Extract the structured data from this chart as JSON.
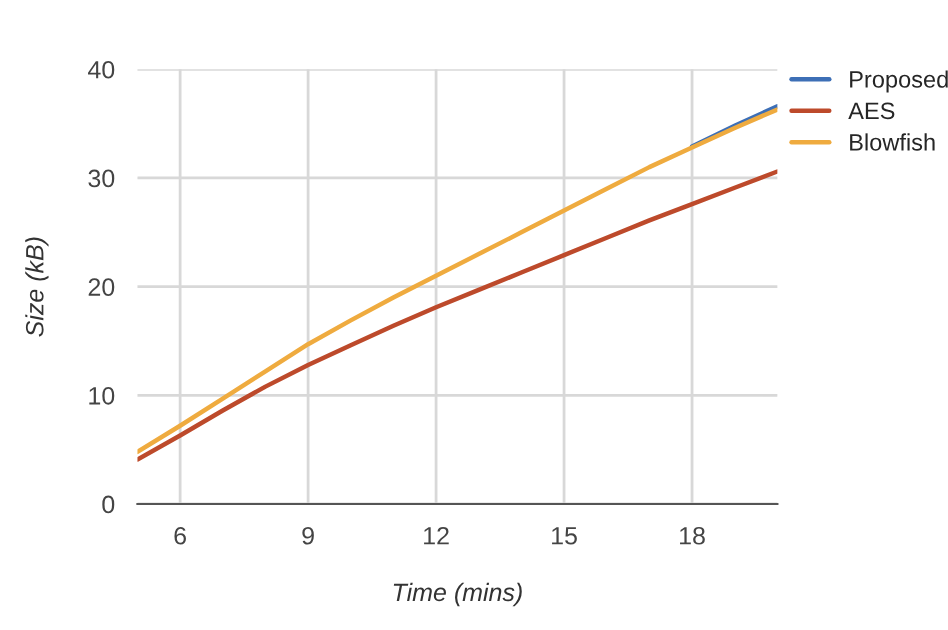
{
  "chart_data": {
    "type": "line",
    "xlabel": "Time (mins)",
    "ylabel": "Size (kB)",
    "x": [
      5,
      6,
      7,
      8,
      9,
      10,
      11,
      12,
      13,
      14,
      15,
      16,
      17,
      18,
      19,
      20
    ],
    "series": [
      {
        "name": "Proposed",
        "color": "#3d6fb6",
        "values": [
          null,
          null,
          null,
          null,
          null,
          null,
          null,
          null,
          null,
          null,
          null,
          null,
          null,
          32.9,
          34.8,
          36.6
        ]
      },
      {
        "name": "AES",
        "color": "#bd4a2b",
        "values": [
          4.1,
          6.3,
          8.6,
          10.8,
          12.8,
          14.6,
          16.4,
          18.1,
          19.7,
          21.3,
          22.9,
          24.5,
          26.1,
          27.6,
          29.1,
          30.6
        ]
      },
      {
        "name": "Blowfish",
        "color": "#efab3f",
        "values": [
          4.8,
          7.2,
          9.7,
          12.2,
          14.7,
          16.9,
          19.0,
          21.0,
          23.0,
          25.0,
          27.0,
          29.0,
          31.0,
          32.8,
          34.6,
          36.3
        ]
      }
    ],
    "xlim": [
      5,
      20
    ],
    "xticks": [
      6,
      9,
      12,
      15,
      18
    ],
    "ylim": [
      0,
      40
    ],
    "yticks": [
      0,
      10,
      20,
      30,
      40
    ],
    "grid": true,
    "legend": "top right",
    "line_style": "solid",
    "marker": "none"
  }
}
